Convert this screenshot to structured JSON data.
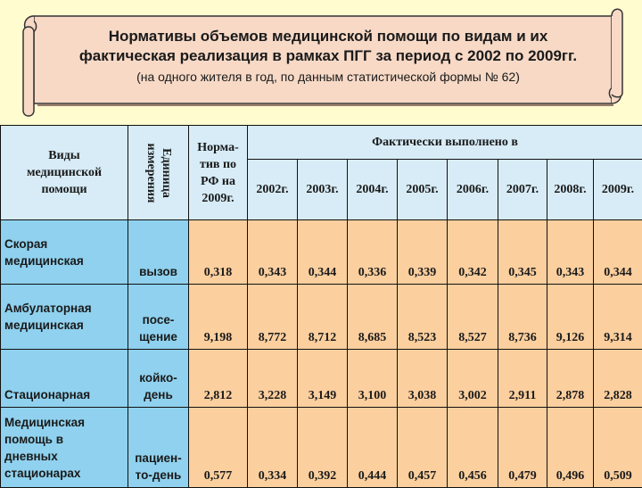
{
  "banner": {
    "title_line1": "Нормативы объемов медицинской помощи по видам и их",
    "title_line2": "фактическая реализация  в рамках ПГГ за период с 2002 по 2009гг.",
    "subtitle": "(на одного жителя в год, по данным статистической формы № 62)"
  },
  "table": {
    "col_type": "Виды медицинской помощи",
    "col_unit_line1": "Единица",
    "col_unit_line2": "измерения",
    "col_norm": "Норма-тив по РФ на 2009г.",
    "col_actual": "Фактически выполнено в",
    "years": [
      "2002г.",
      "2003г.",
      "2004г.",
      "2005г.",
      "2006г.",
      "2007г.",
      "2008г.",
      "2009г."
    ],
    "rows": [
      {
        "type": "Скорая медицинская",
        "unit": "вызов",
        "norm": "0,318",
        "values": [
          "0,343",
          "0,344",
          "0,336",
          "0,339",
          "0,342",
          "0,345",
          "0,343",
          "0,344"
        ]
      },
      {
        "type": "Амбулаторная медицинская",
        "unit": "посе-щение",
        "norm": "9,198",
        "values": [
          "8,772",
          "8,712",
          "8,685",
          "8,523",
          "8,527",
          "8,736",
          "9,126",
          "9,314"
        ]
      },
      {
        "type": "Стационарная",
        "unit": "койко-день",
        "norm": "2,812",
        "values": [
          "3,228",
          "3,149",
          "3,100",
          "3,038",
          "3,002",
          "2,911",
          "2,878",
          "2,828"
        ]
      },
      {
        "type": "Медицинская помощь в дневных стационарах",
        "unit": "пациен-то-день",
        "norm": "0,577",
        "values": [
          "0,334",
          "0,392",
          "0,444",
          "0,457",
          "0,456",
          "0,479",
          "0,496",
          "0,509"
        ]
      }
    ]
  },
  "colors": {
    "background": "#fffcd0",
    "banner_fill": "#f7d9c6",
    "header_fill": "#d7ecf7",
    "label_fill": "#8fd1ee",
    "value_fill": "#fbcf9e"
  }
}
